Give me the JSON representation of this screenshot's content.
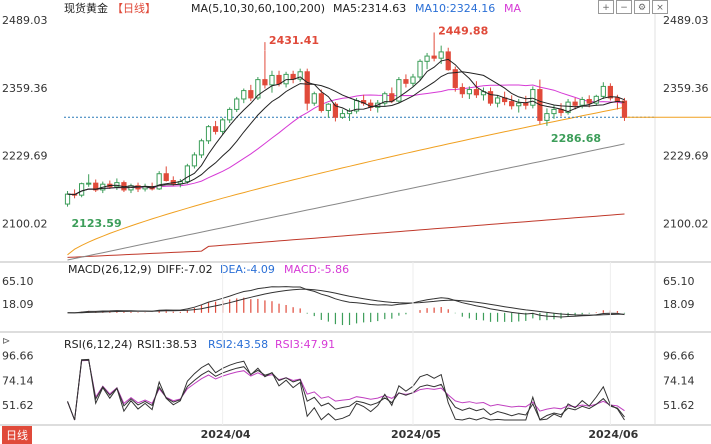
{
  "header": {
    "title": "现货黄金",
    "period": "【日线】",
    "ma_label": "MA(5,10,30,60,100,200)",
    "ma5": "MA5:2314.63",
    "ma10": "MA10:2324.16",
    "ma_tail": "MA"
  },
  "macd_header": {
    "label": "MACD(26,12,9)",
    "diff": "DIFF:-7.02",
    "dea": "DEA:-4.09",
    "macd": "MACD:-5.86"
  },
  "rsi_header": {
    "label": "RSI(6,12,24)",
    "rsi1": "RSI1:38.53",
    "rsi2": "RSI2:43.58",
    "rsi3": "RSI3:47.91"
  },
  "footer_tag": "日线",
  "toolbar_icons": [
    "zoom-in-icon",
    "zoom-out-icon",
    "settings-icon",
    "close-icon"
  ],
  "colors": {
    "up": "#3d9e5a",
    "down": "#e04a3a",
    "ma5": "#222222",
    "ma10": "#222222",
    "ma30": "#d63ad6",
    "ma60": "#f0a020",
    "ma100": "#888888",
    "ma200": "#c0392b",
    "macd_diff": "#333333",
    "macd_dea": "#333333",
    "rsi1": "#333333",
    "rsi2": "#333333",
    "rsi3": "#c040c0",
    "price_line": "#2a7ab8"
  },
  "chart_data": [
    {
      "type": "candlestick",
      "y_ticks": [
        "2489.03",
        "2359.36",
        "2229.69",
        "2100.02"
      ],
      "ylim": [
        2030,
        2489.03
      ],
      "x_ticks": [
        "2024/04",
        "2024/05",
        "2024/06"
      ],
      "annotations": [
        {
          "label": "2431.41",
          "value": 2431.41,
          "kind": "high"
        },
        {
          "label": "2449.88",
          "value": 2449.88,
          "kind": "high"
        },
        {
          "label": "2286.68",
          "value": 2286.68,
          "kind": "low"
        },
        {
          "label": "2123.59",
          "value": 2123.59,
          "kind": "low"
        }
      ],
      "last_price": 2303,
      "candles": [
        [
          2137,
          2162,
          2132,
          2156
        ],
        [
          2156,
          2165,
          2148,
          2154
        ],
        [
          2154,
          2178,
          2150,
          2176
        ],
        [
          2176,
          2194,
          2170,
          2177
        ],
        [
          2177,
          2184,
          2160,
          2164
        ],
        [
          2164,
          2180,
          2158,
          2175
        ],
        [
          2175,
          2182,
          2166,
          2170
        ],
        [
          2170,
          2186,
          2164,
          2178
        ],
        [
          2178,
          2182,
          2160,
          2164
        ],
        [
          2164,
          2176,
          2158,
          2172
        ],
        [
          2172,
          2178,
          2160,
          2166
        ],
        [
          2166,
          2176,
          2161,
          2170
        ],
        [
          2170,
          2178,
          2163,
          2166
        ],
        [
          2166,
          2200,
          2164,
          2195
        ],
        [
          2195,
          2209,
          2180,
          2182
        ],
        [
          2182,
          2190,
          2172,
          2176
        ],
        [
          2176,
          2185,
          2169,
          2180
        ],
        [
          2180,
          2214,
          2176,
          2210
        ],
        [
          2210,
          2236,
          2205,
          2231
        ],
        [
          2231,
          2262,
          2225,
          2258
        ],
        [
          2258,
          2288,
          2252,
          2285
        ],
        [
          2285,
          2296,
          2270,
          2276
        ],
        [
          2276,
          2302,
          2270,
          2298
        ],
        [
          2298,
          2322,
          2292,
          2318
        ],
        [
          2318,
          2342,
          2313,
          2338
        ],
        [
          2338,
          2358,
          2330,
          2354
        ],
        [
          2354,
          2365,
          2334,
          2340
        ],
        [
          2340,
          2380,
          2336,
          2375
        ],
        [
          2375,
          2431,
          2358,
          2365
        ],
        [
          2365,
          2392,
          2350,
          2383
        ],
        [
          2383,
          2392,
          2362,
          2367
        ],
        [
          2367,
          2390,
          2360,
          2385
        ],
        [
          2385,
          2392,
          2368,
          2376
        ],
        [
          2376,
          2396,
          2371,
          2390
        ],
        [
          2390,
          2396,
          2316,
          2330
        ],
        [
          2330,
          2352,
          2325,
          2348
        ],
        [
          2348,
          2356,
          2312,
          2316
        ],
        [
          2316,
          2330,
          2302,
          2328
        ],
        [
          2328,
          2332,
          2295,
          2303
        ],
        [
          2303,
          2318,
          2300,
          2310
        ],
        [
          2310,
          2320,
          2296,
          2315
        ],
        [
          2315,
          2340,
          2310,
          2335
        ],
        [
          2335,
          2346,
          2325,
          2330
        ],
        [
          2330,
          2337,
          2315,
          2322
        ],
        [
          2322,
          2336,
          2312,
          2330
        ],
        [
          2330,
          2352,
          2325,
          2348
        ],
        [
          2348,
          2360,
          2330,
          2334
        ],
        [
          2334,
          2380,
          2330,
          2375
        ],
        [
          2375,
          2385,
          2360,
          2368
        ],
        [
          2368,
          2386,
          2362,
          2380
        ],
        [
          2380,
          2414,
          2374,
          2410
        ],
        [
          2410,
          2426,
          2395,
          2420
        ],
        [
          2420,
          2449.88,
          2410,
          2416
        ],
        [
          2416,
          2440,
          2405,
          2428
        ],
        [
          2428,
          2436,
          2392,
          2394
        ],
        [
          2394,
          2400,
          2352,
          2360
        ],
        [
          2360,
          2368,
          2340,
          2348
        ],
        [
          2348,
          2362,
          2338,
          2356
        ],
        [
          2356,
          2372,
          2340,
          2346
        ],
        [
          2346,
          2360,
          2335,
          2352
        ],
        [
          2352,
          2360,
          2325,
          2330
        ],
        [
          2330,
          2345,
          2322,
          2340
        ],
        [
          2340,
          2352,
          2326,
          2333
        ],
        [
          2333,
          2345,
          2318,
          2325
        ],
        [
          2325,
          2338,
          2312,
          2330
        ],
        [
          2330,
          2344,
          2318,
          2326
        ],
        [
          2326,
          2362,
          2320,
          2356
        ],
        [
          2356,
          2375,
          2290,
          2297
        ],
        [
          2297,
          2320,
          2286.68,
          2310
        ],
        [
          2310,
          2326,
          2300,
          2318
        ],
        [
          2318,
          2330,
          2305,
          2312
        ],
        [
          2312,
          2338,
          2308,
          2332
        ],
        [
          2332,
          2340,
          2318,
          2326
        ],
        [
          2326,
          2342,
          2320,
          2337
        ],
        [
          2337,
          2345,
          2322,
          2330
        ],
        [
          2330,
          2346,
          2325,
          2343
        ],
        [
          2343,
          2370,
          2338,
          2362
        ],
        [
          2362,
          2368,
          2335,
          2340
        ],
        [
          2340,
          2346,
          2318,
          2334
        ],
        [
          2334,
          2340,
          2296,
          2303
        ]
      ]
    },
    {
      "type": "line",
      "name": "MACD(26,12,9)",
      "y_ticks": [
        "65.10",
        "18.09"
      ],
      "ylim": [
        -35,
        75
      ]
    },
    {
      "type": "line",
      "name": "RSI(6,12,24)",
      "y_ticks": [
        "96.66",
        "74.14",
        "51.62"
      ],
      "ylim": [
        38,
        100
      ]
    }
  ]
}
